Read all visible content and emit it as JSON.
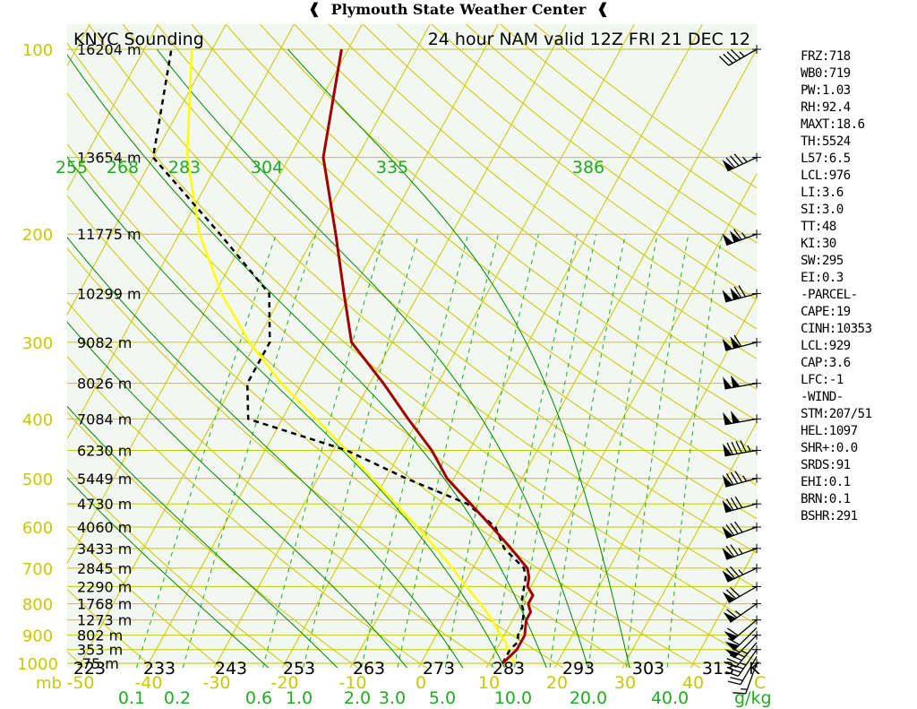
{
  "header": {
    "title": "Plymouth State Weather Center"
  },
  "chart_data": {
    "type": "skew-t log-p sounding",
    "station_title": "KNYC Sounding",
    "run_title": "24 hour NAM valid 12Z FRI 21 DEC 12",
    "pressure_unit_label": "mb",
    "mixing_ratio_unit_label": "g/kg",
    "theta_unit_label": "K",
    "pressure_levels": [
      {
        "p": 100,
        "height": "16204 m",
        "p_label": "100"
      },
      {
        "p": 150,
        "height": "13654 m",
        "p_label": ""
      },
      {
        "p": 200,
        "height": "11775 m",
        "p_label": "200"
      },
      {
        "p": 250,
        "height": "10299 m",
        "p_label": ""
      },
      {
        "p": 300,
        "height": "9082 m",
        "p_label": "300"
      },
      {
        "p": 350,
        "height": "8026 m",
        "p_label": ""
      },
      {
        "p": 400,
        "height": "7084 m",
        "p_label": "400"
      },
      {
        "p": 450,
        "height": "6230 m",
        "p_label": ""
      },
      {
        "p": 500,
        "height": "5449 m",
        "p_label": "500"
      },
      {
        "p": 550,
        "height": "4730 m",
        "p_label": ""
      },
      {
        "p": 600,
        "height": "4060 m",
        "p_label": "600"
      },
      {
        "p": 650,
        "height": "3433 m",
        "p_label": ""
      },
      {
        "p": 700,
        "height": "2845 m",
        "p_label": "700"
      },
      {
        "p": 750,
        "height": "2290 m",
        "p_label": ""
      },
      {
        "p": 800,
        "height": "1768 m",
        "p_label": "800"
      },
      {
        "p": 850,
        "height": "1273 m",
        "p_label": ""
      },
      {
        "p": 900,
        "height": "802 m",
        "p_label": "900"
      },
      {
        "p": 950,
        "height": "353 m",
        "p_label": ""
      },
      {
        "p": 1000,
        "height": "-75 m",
        "p_label": "1000"
      }
    ],
    "temperature_axis": {
      "ticks": [
        -50,
        -40,
        -30,
        -20,
        -10,
        0,
        10,
        20,
        30,
        40
      ],
      "labels": [
        "-50",
        "-40",
        "-30",
        "-20",
        "-10",
        "0",
        "10",
        "20",
        "30",
        "40"
      ],
      "unit_label": "C"
    },
    "theta_bottom_labels": [
      "223",
      "233",
      "243",
      "253",
      "263",
      "273",
      "283",
      "293",
      "303",
      "313"
    ],
    "theta_e_labels": [
      "255",
      "268",
      "283",
      "304",
      "335",
      "386"
    ],
    "mixing_ratio_labels": [
      "0.1",
      "0.2",
      "0.6",
      "1.0",
      "2.0",
      "3.0",
      "5.0",
      "10.0",
      "20.0",
      "40.0"
    ],
    "temperature_profile": [
      [
        1000,
        12.0
      ],
      [
        975,
        12.5
      ],
      [
        950,
        13.0
      ],
      [
        925,
        13.0
      ],
      [
        900,
        13.0
      ],
      [
        875,
        12.5
      ],
      [
        850,
        12.0
      ],
      [
        825,
        12.0
      ],
      [
        800,
        11.0
      ],
      [
        775,
        11.0
      ],
      [
        750,
        9.5
      ],
      [
        725,
        9.0
      ],
      [
        700,
        8.0
      ],
      [
        650,
        4.0
      ],
      [
        600,
        -0.5
      ],
      [
        550,
        -5.5
      ],
      [
        500,
        -11.0
      ],
      [
        450,
        -15.5
      ],
      [
        400,
        -21.5
      ],
      [
        350,
        -28.0
      ],
      [
        300,
        -36.0
      ],
      [
        250,
        -41.0
      ],
      [
        200,
        -47.0
      ],
      [
        150,
        -55.0
      ],
      [
        100,
        -61.0
      ]
    ],
    "dewpoint_profile": [
      [
        1000,
        12.0
      ],
      [
        975,
        12.0
      ],
      [
        950,
        12.0
      ],
      [
        925,
        12.5
      ],
      [
        900,
        12.0
      ],
      [
        875,
        12.0
      ],
      [
        850,
        11.5
      ],
      [
        825,
        11.0
      ],
      [
        800,
        10.0
      ],
      [
        775,
        9.5
      ],
      [
        750,
        9.0
      ],
      [
        725,
        8.5
      ],
      [
        700,
        7.5
      ],
      [
        650,
        3.0
      ],
      [
        600,
        0.0
      ],
      [
        550,
        -6.0
      ],
      [
        500,
        -17.0
      ],
      [
        450,
        -28.0
      ],
      [
        400,
        -45.0
      ],
      [
        350,
        -48.0
      ],
      [
        300,
        -48.0
      ],
      [
        250,
        -52.0
      ],
      [
        200,
        -64.0
      ],
      [
        150,
        -80.0
      ],
      [
        100,
        -86.0
      ]
    ],
    "parcel_profile": [
      [
        1000,
        14.0
      ],
      [
        975,
        12.5
      ],
      [
        950,
        11.5
      ],
      [
        929,
        11.0
      ],
      [
        900,
        9.5
      ],
      [
        850,
        7.0
      ],
      [
        800,
        4.0
      ],
      [
        750,
        0.5
      ],
      [
        700,
        -3.0
      ],
      [
        650,
        -7.0
      ],
      [
        600,
        -11.5
      ],
      [
        550,
        -16.5
      ],
      [
        500,
        -22.0
      ],
      [
        450,
        -28.0
      ],
      [
        400,
        -35.0
      ],
      [
        350,
        -43.0
      ],
      [
        300,
        -51.0
      ],
      [
        250,
        -59.0
      ],
      [
        200,
        -67.0
      ],
      [
        150,
        -75.0
      ],
      [
        100,
        -83.0
      ]
    ],
    "wind_barbs": [
      {
        "p": 1000,
        "dir": 200,
        "kt": 15
      },
      {
        "p": 975,
        "dir": 210,
        "kt": 20
      },
      {
        "p": 950,
        "dir": 215,
        "kt": 35
      },
      {
        "p": 925,
        "dir": 220,
        "kt": 45
      },
      {
        "p": 900,
        "dir": 225,
        "kt": 55
      },
      {
        "p": 875,
        "dir": 225,
        "kt": 60
      },
      {
        "p": 850,
        "dir": 230,
        "kt": 60
      },
      {
        "p": 800,
        "dir": 235,
        "kt": 65
      },
      {
        "p": 750,
        "dir": 240,
        "kt": 70
      },
      {
        "p": 700,
        "dir": 245,
        "kt": 75
      },
      {
        "p": 650,
        "dir": 250,
        "kt": 75
      },
      {
        "p": 600,
        "dir": 250,
        "kt": 80
      },
      {
        "p": 550,
        "dir": 255,
        "kt": 80
      },
      {
        "p": 500,
        "dir": 255,
        "kt": 85
      },
      {
        "p": 450,
        "dir": 260,
        "kt": 95
      },
      {
        "p": 400,
        "dir": 260,
        "kt": 100
      },
      {
        "p": 350,
        "dir": 260,
        "kt": 100
      },
      {
        "p": 300,
        "dir": 255,
        "kt": 110
      },
      {
        "p": 250,
        "dir": 255,
        "kt": 120
      },
      {
        "p": 200,
        "dir": 250,
        "kt": 115
      },
      {
        "p": 150,
        "dir": 245,
        "kt": 85
      },
      {
        "p": 100,
        "dir": 240,
        "kt": 45
      }
    ],
    "colors": {
      "background": "#f2f7f2",
      "isobar": "#c8c800",
      "isotherm": "#c8c800",
      "dry_adiabat": "#c8c800",
      "moist_adiabat": "#008800",
      "mixing_ratio": "#22aa22",
      "temperature": "#a00000",
      "dewpoint": "#000000",
      "parcel": "#ffff00",
      "pressure_labels": "#c8c800",
      "theta_e_labels": "#22aa22"
    }
  },
  "indices": [
    "FRZ:718",
    "WB0:719",
    "PW:1.03",
    "RH:92.4",
    "MAXT:18.6",
    "TH:5524",
    "L57:6.5",
    "LCL:976",
    "LI:3.6",
    "SI:3.0",
    "TT:48",
    "KI:30",
    "SW:295",
    "EI:0.3",
    "-PARCEL-",
    "CAPE:19",
    "CINH:10353",
    "LCL:929",
    "CAP:3.6",
    "LFC:-1",
    "-WIND-",
    "STM:207/51",
    "HEL:1097",
    "SHR+:0.0",
    "SRDS:91",
    "EHI:0.1",
    "BRN:0.1",
    "BSHR:291"
  ]
}
